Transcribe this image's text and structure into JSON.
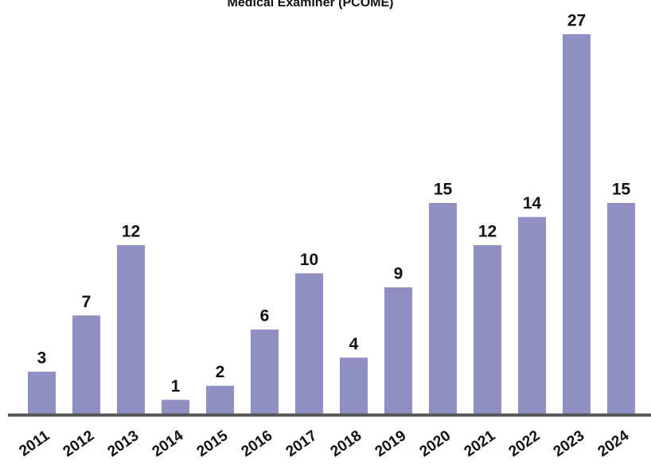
{
  "chart_data": {
    "type": "bar",
    "title": "Medical Examiner (PCOME)",
    "categories": [
      "2011",
      "2012",
      "2013",
      "2014",
      "2015",
      "2016",
      "2017",
      "2018",
      "2019",
      "2020",
      "2021",
      "2022",
      "2023",
      "2024"
    ],
    "values": [
      3,
      7,
      12,
      1,
      2,
      6,
      10,
      4,
      9,
      15,
      12,
      14,
      27,
      15
    ],
    "color": "#8f8fc4",
    "ylim": [
      0,
      27
    ]
  }
}
